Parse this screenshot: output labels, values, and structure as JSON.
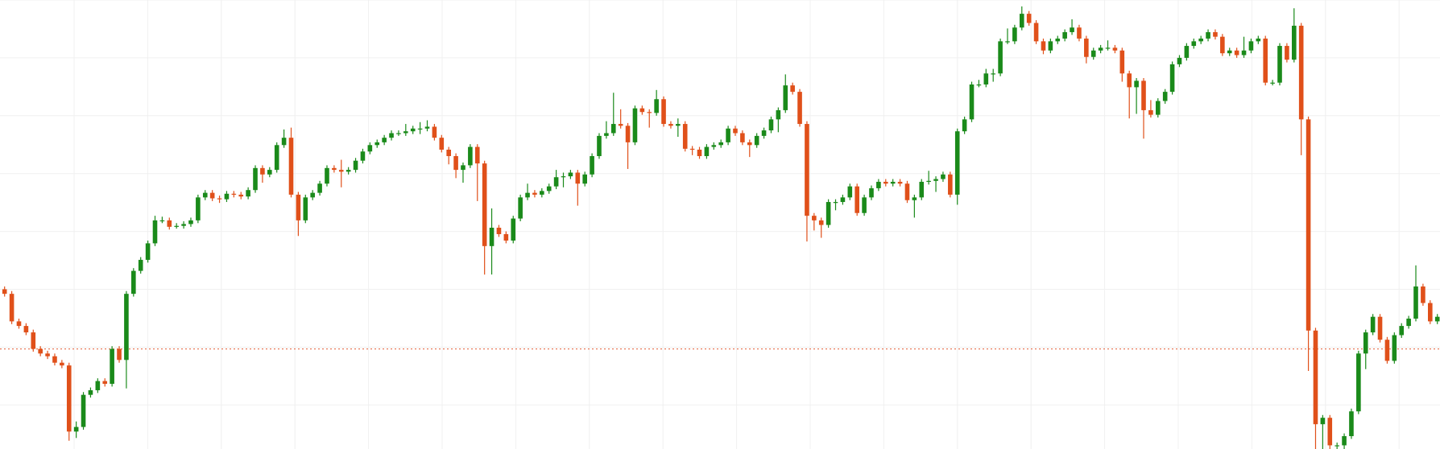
{
  "chart_data": {
    "type": "candlestick",
    "ylim": [
      0,
      489
    ],
    "grid": true,
    "up_color": "#1a8a1a",
    "down_color": "#e0501a",
    "ref_line": 109,
    "ref_color": "#e87a5a",
    "ohlc": [
      [
        174,
        177,
        166,
        169
      ],
      [
        169,
        172,
        136,
        139
      ],
      [
        139,
        142,
        131,
        134
      ],
      [
        134,
        137,
        124,
        127
      ],
      [
        127,
        130,
        106,
        109
      ],
      [
        109,
        112,
        101,
        104
      ],
      [
        104,
        107,
        98,
        101
      ],
      [
        101,
        104,
        91,
        94
      ],
      [
        94,
        97,
        88,
        91
      ],
      [
        91,
        94,
        9,
        19
      ],
      [
        19,
        30,
        12,
        24
      ],
      [
        24,
        62,
        21,
        59
      ],
      [
        59,
        67,
        56,
        64
      ],
      [
        64,
        77,
        61,
        74
      ],
      [
        74,
        77,
        68,
        71
      ],
      [
        71,
        112,
        68,
        109
      ],
      [
        109,
        112,
        94,
        97
      ],
      [
        97,
        172,
        66,
        169
      ],
      [
        169,
        197,
        166,
        194
      ],
      [
        194,
        209,
        191,
        206
      ],
      [
        206,
        227,
        203,
        224
      ],
      [
        224,
        254,
        221,
        249
      ],
      [
        249,
        253,
        246,
        249
      ],
      [
        249,
        252,
        239,
        242
      ],
      [
        242,
        246,
        240,
        243
      ],
      [
        243,
        248,
        240,
        245
      ],
      [
        245,
        252,
        242,
        249
      ],
      [
        249,
        277,
        246,
        274
      ],
      [
        274,
        282,
        271,
        279
      ],
      [
        279,
        282,
        270,
        273
      ],
      [
        273,
        276,
        268,
        272
      ],
      [
        272,
        281,
        269,
        278
      ],
      [
        278,
        281,
        274,
        277
      ],
      [
        277,
        280,
        272,
        275
      ],
      [
        275,
        285,
        272,
        282
      ],
      [
        282,
        309,
        279,
        306
      ],
      [
        306,
        309,
        290,
        299
      ],
      [
        299,
        307,
        296,
        304
      ],
      [
        304,
        334,
        301,
        331
      ],
      [
        331,
        348,
        328,
        339
      ],
      [
        339,
        350,
        274,
        277
      ],
      [
        277,
        280,
        232,
        249
      ],
      [
        249,
        277,
        246,
        274
      ],
      [
        274,
        282,
        271,
        279
      ],
      [
        279,
        292,
        276,
        289
      ],
      [
        289,
        309,
        286,
        306
      ],
      [
        306,
        309,
        301,
        304
      ],
      [
        304,
        315,
        285,
        302
      ],
      [
        302,
        307,
        299,
        304
      ],
      [
        304,
        317,
        301,
        314
      ],
      [
        314,
        327,
        311,
        324
      ],
      [
        324,
        334,
        321,
        331
      ],
      [
        331,
        337,
        328,
        334
      ],
      [
        334,
        342,
        331,
        339
      ],
      [
        339,
        347,
        336,
        344
      ],
      [
        344,
        347,
        341,
        344
      ],
      [
        344,
        354,
        341,
        346
      ],
      [
        346,
        352,
        343,
        349
      ],
      [
        349,
        356,
        343,
        349
      ],
      [
        349,
        358,
        346,
        351
      ],
      [
        351,
        354,
        336,
        339
      ],
      [
        339,
        342,
        323,
        326
      ],
      [
        326,
        329,
        310,
        319
      ],
      [
        319,
        322,
        295,
        304
      ],
      [
        304,
        312,
        290,
        309
      ],
      [
        309,
        332,
        306,
        329
      ],
      [
        329,
        332,
        270,
        311
      ],
      [
        311,
        314,
        190,
        221
      ],
      [
        221,
        262,
        190,
        241
      ],
      [
        241,
        244,
        231,
        234
      ],
      [
        234,
        237,
        224,
        227
      ],
      [
        227,
        254,
        224,
        251
      ],
      [
        251,
        277,
        248,
        274
      ],
      [
        274,
        289,
        271,
        279
      ],
      [
        279,
        282,
        274,
        277
      ],
      [
        277,
        284,
        274,
        281
      ],
      [
        281,
        289,
        278,
        286
      ],
      [
        286,
        304,
        283,
        296
      ],
      [
        296,
        301,
        285,
        297
      ],
      [
        297,
        304,
        294,
        301
      ],
      [
        301,
        304,
        265,
        289
      ],
      [
        289,
        302,
        286,
        299
      ],
      [
        299,
        322,
        296,
        319
      ],
      [
        319,
        344,
        316,
        341
      ],
      [
        341,
        357,
        338,
        344
      ],
      [
        344,
        388,
        341,
        354
      ],
      [
        354,
        370,
        349,
        352
      ],
      [
        352,
        355,
        305,
        334
      ],
      [
        334,
        374,
        331,
        371
      ],
      [
        371,
        374,
        364,
        367
      ],
      [
        367,
        370,
        350,
        366
      ],
      [
        366,
        391,
        363,
        381
      ],
      [
        381,
        384,
        351,
        354
      ],
      [
        354,
        357,
        349,
        352
      ],
      [
        352,
        360,
        340,
        354
      ],
      [
        354,
        357,
        324,
        327
      ],
      [
        327,
        330,
        320,
        326
      ],
      [
        326,
        329,
        316,
        319
      ],
      [
        319,
        332,
        316,
        329
      ],
      [
        329,
        334,
        326,
        331
      ],
      [
        331,
        337,
        328,
        334
      ],
      [
        334,
        352,
        331,
        349
      ],
      [
        349,
        352,
        341,
        344
      ],
      [
        344,
        347,
        331,
        334
      ],
      [
        334,
        337,
        318,
        331
      ],
      [
        331,
        344,
        328,
        341
      ],
      [
        341,
        350,
        338,
        347
      ],
      [
        347,
        362,
        344,
        359
      ],
      [
        359,
        372,
        345,
        369
      ],
      [
        369,
        408,
        366,
        396
      ],
      [
        396,
        399,
        386,
        389
      ],
      [
        389,
        392,
        351,
        354
      ],
      [
        354,
        357,
        226,
        254
      ],
      [
        254,
        257,
        238,
        249
      ],
      [
        249,
        252,
        230,
        244
      ],
      [
        244,
        272,
        241,
        269
      ],
      [
        269,
        272,
        260,
        269
      ],
      [
        269,
        277,
        266,
        274
      ],
      [
        274,
        289,
        271,
        286
      ],
      [
        286,
        289,
        254,
        257
      ],
      [
        257,
        277,
        254,
        274
      ],
      [
        274,
        287,
        271,
        284
      ],
      [
        284,
        294,
        281,
        291
      ],
      [
        291,
        294,
        286,
        289
      ],
      [
        289,
        294,
        286,
        291
      ],
      [
        291,
        294,
        286,
        289
      ],
      [
        289,
        292,
        268,
        271
      ],
      [
        271,
        277,
        252,
        274
      ],
      [
        274,
        294,
        271,
        291
      ],
      [
        291,
        303,
        288,
        292
      ],
      [
        292,
        297,
        280,
        294
      ],
      [
        294,
        302,
        291,
        299
      ],
      [
        299,
        302,
        274,
        277
      ],
      [
        277,
        349,
        266,
        346
      ],
      [
        346,
        362,
        343,
        359
      ],
      [
        359,
        400,
        356,
        397
      ],
      [
        397,
        402,
        394,
        397
      ],
      [
        397,
        414,
        394,
        409
      ],
      [
        409,
        414,
        400,
        409
      ],
      [
        409,
        447,
        406,
        444
      ],
      [
        444,
        458,
        441,
        444
      ],
      [
        444,
        462,
        441,
        459
      ],
      [
        459,
        482,
        456,
        474
      ],
      [
        474,
        477,
        461,
        464
      ],
      [
        464,
        467,
        441,
        444
      ],
      [
        444,
        447,
        430,
        434
      ],
      [
        434,
        447,
        431,
        444
      ],
      [
        444,
        450,
        441,
        447
      ],
      [
        447,
        457,
        444,
        454
      ],
      [
        454,
        468,
        451,
        459
      ],
      [
        459,
        462,
        444,
        447
      ],
      [
        447,
        450,
        420,
        427
      ],
      [
        427,
        437,
        424,
        434
      ],
      [
        434,
        440,
        431,
        437
      ],
      [
        437,
        445,
        434,
        437
      ],
      [
        437,
        440,
        431,
        434
      ],
      [
        434,
        437,
        400,
        409
      ],
      [
        409,
        412,
        360,
        394
      ],
      [
        394,
        404,
        365,
        401
      ],
      [
        401,
        404,
        338,
        369
      ],
      [
        369,
        380,
        361,
        364
      ],
      [
        364,
        382,
        361,
        379
      ],
      [
        379,
        392,
        376,
        389
      ],
      [
        389,
        422,
        386,
        419
      ],
      [
        419,
        429,
        416,
        426
      ],
      [
        426,
        442,
        423,
        439
      ],
      [
        439,
        447,
        436,
        444
      ],
      [
        444,
        450,
        441,
        447
      ],
      [
        447,
        457,
        444,
        454
      ],
      [
        454,
        457,
        446,
        449
      ],
      [
        449,
        452,
        428,
        431
      ],
      [
        431,
        437,
        428,
        434
      ],
      [
        434,
        437,
        426,
        429
      ],
      [
        429,
        449,
        426,
        434
      ],
      [
        434,
        447,
        431,
        444
      ],
      [
        444,
        450,
        441,
        447
      ],
      [
        447,
        450,
        396,
        399
      ],
      [
        399,
        402,
        396,
        399
      ],
      [
        399,
        442,
        396,
        439
      ],
      [
        439,
        442,
        421,
        424
      ],
      [
        424,
        480,
        421,
        461
      ],
      [
        461,
        464,
        320,
        359
      ],
      [
        359,
        362,
        85,
        129
      ],
      [
        129,
        132,
        0,
        27
      ],
      [
        27,
        37,
        0,
        34
      ],
      [
        34,
        37,
        0,
        4
      ],
      [
        4,
        7,
        0,
        4
      ],
      [
        4,
        17,
        0,
        14
      ],
      [
        14,
        44,
        11,
        41
      ],
      [
        41,
        107,
        38,
        104
      ],
      [
        104,
        130,
        87,
        127
      ],
      [
        127,
        147,
        124,
        144
      ],
      [
        144,
        147,
        116,
        119
      ],
      [
        119,
        122,
        93,
        96
      ],
      [
        96,
        127,
        93,
        124
      ],
      [
        124,
        137,
        121,
        134
      ],
      [
        134,
        145,
        131,
        142
      ],
      [
        142,
        200,
        139,
        177
      ],
      [
        177,
        180,
        156,
        159
      ],
      [
        159,
        162,
        136,
        139
      ],
      [
        139,
        147,
        136,
        144
      ]
    ]
  }
}
